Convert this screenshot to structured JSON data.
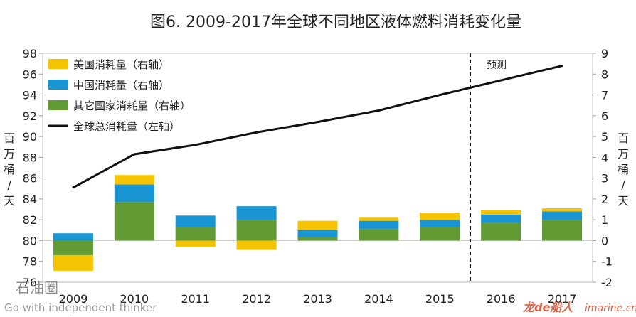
{
  "chart_data": {
    "type": "bar",
    "title": "图6. 2009-2017年全球不同地区液体燃料消耗变化量",
    "categories": [
      "2009",
      "2010",
      "2011",
      "2012",
      "2013",
      "2014",
      "2015",
      "2016",
      "2017"
    ],
    "y_left": {
      "label": "百万桶/天",
      "min": 76,
      "max": 98,
      "ticks": [
        "76",
        "78",
        "80",
        "82",
        "84",
        "86",
        "88",
        "90",
        "92",
        "94",
        "96",
        "98"
      ]
    },
    "y_right": {
      "label": "百万桶/天",
      "min": -2,
      "max": 9,
      "ticks": [
        "-2",
        "-1",
        "0",
        "1",
        "2",
        "3",
        "4",
        "5",
        "6",
        "7",
        "8",
        "9"
      ]
    },
    "series": [
      {
        "name": "美国消耗量（右轴）",
        "color": "#F5C400",
        "axis": "right",
        "values": [
          -0.75,
          0.45,
          -0.3,
          -0.45,
          0.45,
          0.15,
          0.35,
          0.2,
          0.15
        ]
      },
      {
        "name": "中国消耗量（右轴）",
        "color": "#1A95D3",
        "axis": "right",
        "values": [
          0.35,
          0.85,
          0.55,
          0.65,
          0.35,
          0.4,
          0.35,
          0.4,
          0.4
        ]
      },
      {
        "name": "其它国家消耗量（右轴）",
        "color": "#629A34",
        "axis": "right",
        "values": [
          -0.7,
          1.85,
          0.65,
          1.0,
          0.15,
          0.55,
          0.65,
          0.85,
          1.0
        ]
      },
      {
        "name": "全球总消耗量（左轴）",
        "color": "#111111",
        "axis": "left",
        "type": "line",
        "values": [
          85.1,
          88.3,
          89.2,
          90.4,
          91.4,
          92.5,
          94.0,
          95.4,
          96.8
        ]
      }
    ],
    "forecast_from": "2016",
    "forecast_label": "预测",
    "grid": false,
    "legend_position": "top-left"
  },
  "watermark": {
    "left_brand": "石油圈",
    "left_tagline": "Go with independent thinker",
    "right_brand": "龙de船人",
    "right_site": "imarine.cn"
  }
}
